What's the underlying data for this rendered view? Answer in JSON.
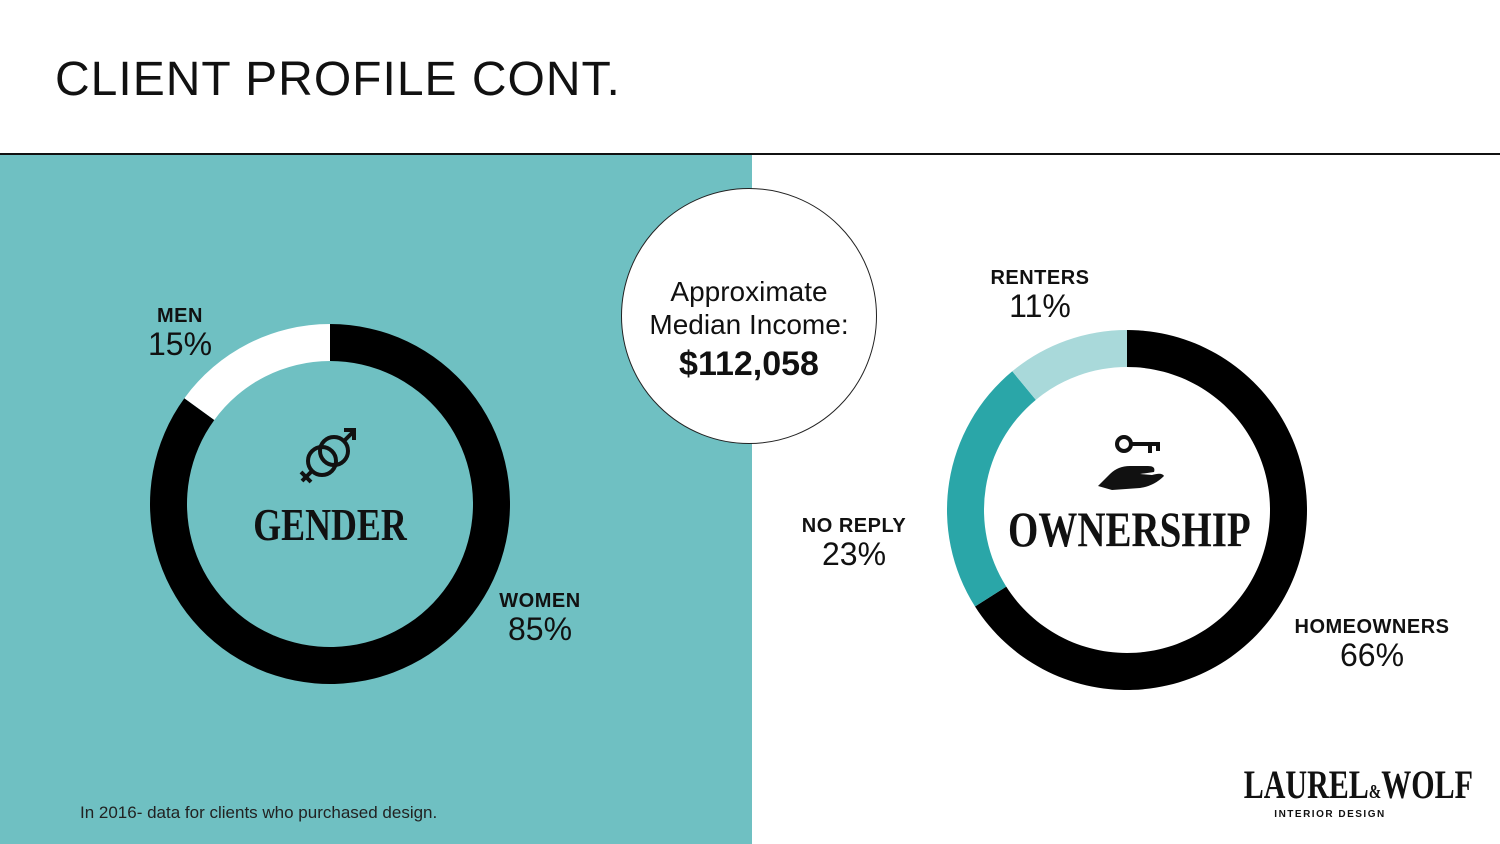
{
  "header": {
    "title": "CLIENT PROFILE CONT."
  },
  "footnote": "In 2016- data for clients who purchased design.",
  "income": {
    "label_line1": "Approximate",
    "label_line2": "Median Income:",
    "value": "$112,058"
  },
  "logo": {
    "main": "LAUREL",
    "amp": "&",
    "main2": "WOLF",
    "sub": "INTERIOR DESIGN"
  },
  "colors": {
    "left_panel": "#6fc0c2",
    "women": "#000000",
    "men": "#ffffff",
    "homeowners": "#000000",
    "no_reply": "#2aa6a8",
    "renters": "#a9d9da"
  },
  "chart_data": [
    {
      "type": "pie",
      "style": "donut",
      "center_label": "GENDER",
      "icon": "gender-symbols-icon",
      "categories": [
        "WOMEN",
        "MEN"
      ],
      "values": [
        85,
        15
      ],
      "value_labels": [
        "85%",
        "15%"
      ]
    },
    {
      "type": "pie",
      "style": "donut",
      "center_label": "OWNERSHIP",
      "icon": "key-in-hand-icon",
      "categories": [
        "HOMEOWNERS",
        "NO REPLY",
        "RENTERS"
      ],
      "values": [
        66,
        23,
        11
      ],
      "value_labels": [
        "66%",
        "23%",
        "11%"
      ]
    }
  ]
}
